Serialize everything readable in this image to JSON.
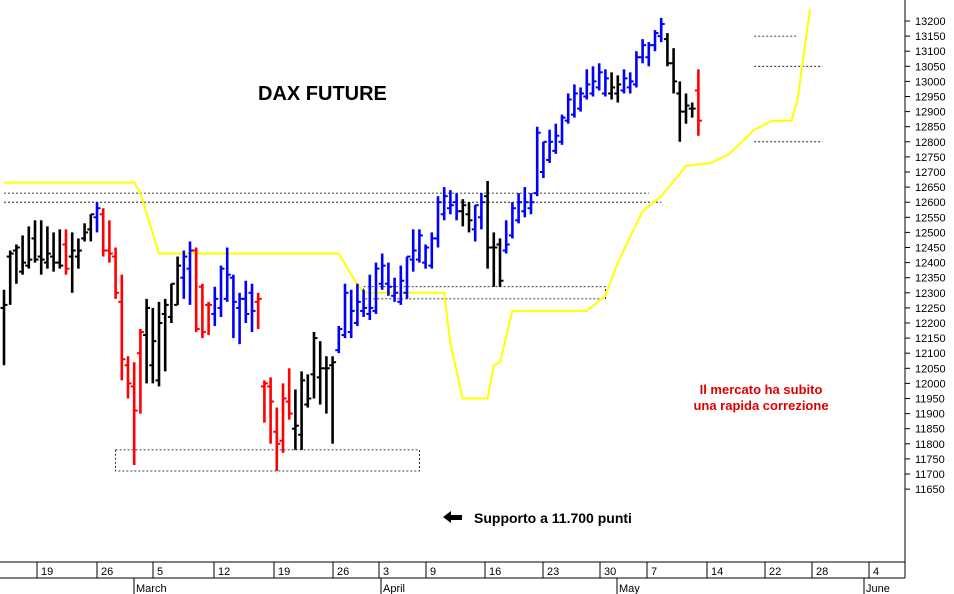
{
  "chart_data": {
    "type": "ohlc",
    "title": "DAX FUTURE",
    "ylim": [
      11620,
      13260
    ],
    "y_ticks": [
      11650,
      11700,
      11750,
      11800,
      11850,
      11900,
      11950,
      12000,
      12050,
      12100,
      12150,
      12200,
      12250,
      12300,
      12350,
      12400,
      12450,
      12500,
      12550,
      12600,
      12650,
      12700,
      12750,
      12800,
      12850,
      12900,
      12950,
      13000,
      13050,
      13100,
      13150,
      13200
    ],
    "x_ticks": [
      "19",
      "26",
      "5",
      "12",
      "19",
      "26",
      "3",
      "9",
      "16",
      "23",
      "30",
      "7",
      "14",
      "22",
      "28",
      "4"
    ],
    "months": [
      "March",
      "April",
      "May",
      "June"
    ],
    "bar_colors": {
      "up": "#0000ff",
      "down": "#ff0000",
      "neutral": "#000000"
    },
    "trailing_line_color": "#ffff00",
    "bars": [
      {
        "h": 12310,
        "l": 12060,
        "o": 12250,
        "c": 12260,
        "color": "k"
      },
      {
        "h": 12440,
        "l": 12260,
        "o": 12420,
        "c": 12430,
        "color": "k"
      },
      {
        "h": 12460,
        "l": 12330,
        "o": 12440,
        "c": 12450,
        "color": "k"
      },
      {
        "h": 12490,
        "l": 12360,
        "o": 12370,
        "c": 12400,
        "color": "k"
      },
      {
        "h": 12520,
        "l": 12380,
        "o": 12390,
        "c": 12410,
        "color": "k"
      },
      {
        "h": 12540,
        "l": 12400,
        "o": 12480,
        "c": 12410,
        "color": "k"
      },
      {
        "h": 12540,
        "l": 12360,
        "o": 12420,
        "c": 12410,
        "color": "k"
      },
      {
        "h": 12520,
        "l": 12380,
        "o": 12400,
        "c": 12430,
        "color": "k"
      },
      {
        "h": 12500,
        "l": 12370,
        "o": 12420,
        "c": 12400,
        "color": "k"
      },
      {
        "h": 12510,
        "l": 12380,
        "o": 12400,
        "c": 12390,
        "color": "k"
      },
      {
        "h": 12510,
        "l": 12360,
        "o": 12460,
        "c": 12380,
        "color": "r"
      },
      {
        "h": 12500,
        "l": 12300,
        "o": 12420,
        "c": 12440,
        "color": "k"
      },
      {
        "h": 12480,
        "l": 12380,
        "o": 12420,
        "c": 12440,
        "color": "k"
      },
      {
        "h": 12530,
        "l": 12470,
        "o": 12480,
        "c": 12500,
        "color": "k"
      },
      {
        "h": 12560,
        "l": 12470,
        "o": 12510,
        "c": 12560,
        "color": "k"
      },
      {
        "h": 12600,
        "l": 12500,
        "o": 12550,
        "c": 12580,
        "color": "b"
      },
      {
        "h": 12580,
        "l": 12420,
        "o": 12560,
        "c": 12440,
        "color": "r"
      },
      {
        "h": 12540,
        "l": 12400,
        "o": 12440,
        "c": 12430,
        "color": "r"
      },
      {
        "h": 12450,
        "l": 12280,
        "o": 12420,
        "c": 12300,
        "color": "r"
      },
      {
        "h": 12360,
        "l": 12010,
        "o": 12270,
        "c": 12080,
        "color": "r"
      },
      {
        "h": 12090,
        "l": 11950,
        "o": 12060,
        "c": 12000,
        "color": "r"
      },
      {
        "h": 12070,
        "l": 11730,
        "o": 11990,
        "c": 11910,
        "color": "r"
      },
      {
        "h": 12180,
        "l": 11900,
        "o": 12100,
        "c": 12170,
        "color": "r"
      },
      {
        "h": 12280,
        "l": 12000,
        "o": 12160,
        "c": 12250,
        "color": "k"
      },
      {
        "h": 12250,
        "l": 12000,
        "o": 12060,
        "c": 12140,
        "color": "k"
      },
      {
        "h": 12270,
        "l": 11990,
        "o": 12010,
        "c": 12200,
        "color": "k"
      },
      {
        "h": 12280,
        "l": 12040,
        "o": 12230,
        "c": 12260,
        "color": "k"
      },
      {
        "h": 12330,
        "l": 12200,
        "o": 12220,
        "c": 12330,
        "color": "k"
      },
      {
        "h": 12420,
        "l": 12260,
        "o": 12260,
        "c": 12390,
        "color": "k"
      },
      {
        "h": 12440,
        "l": 12280,
        "o": 12350,
        "c": 12420,
        "color": "b"
      },
      {
        "h": 12470,
        "l": 12260,
        "o": 12380,
        "c": 12440,
        "color": "b"
      },
      {
        "h": 12450,
        "l": 12170,
        "o": 12440,
        "c": 12180,
        "color": "r"
      },
      {
        "h": 12330,
        "l": 12150,
        "o": 12320,
        "c": 12170,
        "color": "r"
      },
      {
        "h": 12270,
        "l": 12160,
        "o": 12260,
        "c": 12260,
        "color": "r"
      },
      {
        "h": 12320,
        "l": 12190,
        "o": 12230,
        "c": 12280,
        "color": "b"
      },
      {
        "h": 12390,
        "l": 12220,
        "o": 12250,
        "c": 12380,
        "color": "b"
      },
      {
        "h": 12450,
        "l": 12270,
        "o": 12280,
        "c": 12360,
        "color": "b"
      },
      {
        "h": 12360,
        "l": 12150,
        "o": 12350,
        "c": 12270,
        "color": "b"
      },
      {
        "h": 12300,
        "l": 12130,
        "o": 12250,
        "c": 12280,
        "color": "b"
      },
      {
        "h": 12340,
        "l": 12200,
        "o": 12280,
        "c": 12230,
        "color": "b"
      },
      {
        "h": 12330,
        "l": 12170,
        "o": 12300,
        "c": 12240,
        "color": "b"
      },
      {
        "h": 12300,
        "l": 12180,
        "o": 12270,
        "c": 12280,
        "color": "r"
      },
      {
        "h": 12010,
        "l": 11870,
        "o": 11990,
        "c": 12000,
        "color": "r"
      },
      {
        "h": 12020,
        "l": 11800,
        "o": 11990,
        "c": 11940,
        "color": "r"
      },
      {
        "h": 11920,
        "l": 11710,
        "o": 11840,
        "c": 11800,
        "color": "r"
      },
      {
        "h": 12000,
        "l": 11770,
        "o": 11810,
        "c": 11950,
        "color": "r"
      },
      {
        "h": 12050,
        "l": 11880,
        "o": 11940,
        "c": 11900,
        "color": "r"
      },
      {
        "h": 11980,
        "l": 11780,
        "o": 11850,
        "c": 11860,
        "color": "k"
      },
      {
        "h": 12040,
        "l": 11780,
        "o": 11830,
        "c": 12010,
        "color": "k"
      },
      {
        "h": 12030,
        "l": 11920,
        "o": 11930,
        "c": 11950,
        "color": "k"
      },
      {
        "h": 12170,
        "l": 11950,
        "o": 12030,
        "c": 12150,
        "color": "k"
      },
      {
        "h": 12140,
        "l": 11930,
        "o": 12020,
        "c": 12050,
        "color": "k"
      },
      {
        "h": 12090,
        "l": 11900,
        "o": 12050,
        "c": 12050,
        "color": "k"
      },
      {
        "h": 12090,
        "l": 11800,
        "o": 12060,
        "c": 12070,
        "color": "k"
      },
      {
        "h": 12190,
        "l": 12100,
        "o": 12110,
        "c": 12180,
        "color": "b"
      },
      {
        "h": 12330,
        "l": 12150,
        "o": 12160,
        "c": 12300,
        "color": "b"
      },
      {
        "h": 12310,
        "l": 12150,
        "o": 12170,
        "c": 12240,
        "color": "b"
      },
      {
        "h": 12330,
        "l": 12190,
        "o": 12200,
        "c": 12270,
        "color": "b"
      },
      {
        "h": 12310,
        "l": 12220,
        "o": 12240,
        "c": 12250,
        "color": "b"
      },
      {
        "h": 12360,
        "l": 12210,
        "o": 12230,
        "c": 12250,
        "color": "b"
      },
      {
        "h": 12400,
        "l": 12230,
        "o": 12240,
        "c": 12380,
        "color": "b"
      },
      {
        "h": 12430,
        "l": 12310,
        "o": 12330,
        "c": 12390,
        "color": "b"
      },
      {
        "h": 12400,
        "l": 12290,
        "o": 12330,
        "c": 12320,
        "color": "b"
      },
      {
        "h": 12350,
        "l": 12270,
        "o": 12290,
        "c": 12300,
        "color": "b"
      },
      {
        "h": 12390,
        "l": 12260,
        "o": 12270,
        "c": 12340,
        "color": "b"
      },
      {
        "h": 12420,
        "l": 12280,
        "o": 12300,
        "c": 12420,
        "color": "b"
      },
      {
        "h": 12510,
        "l": 12370,
        "o": 12410,
        "c": 12440,
        "color": "b"
      },
      {
        "h": 12510,
        "l": 12400,
        "o": 12410,
        "c": 12490,
        "color": "b"
      },
      {
        "h": 12460,
        "l": 12380,
        "o": 12400,
        "c": 12450,
        "color": "b"
      },
      {
        "h": 12500,
        "l": 12380,
        "o": 12390,
        "c": 12480,
        "color": "b"
      },
      {
        "h": 12620,
        "l": 12450,
        "o": 12480,
        "c": 12600,
        "color": "b"
      },
      {
        "h": 12650,
        "l": 12540,
        "o": 12560,
        "c": 12620,
        "color": "b"
      },
      {
        "h": 12640,
        "l": 12560,
        "o": 12580,
        "c": 12590,
        "color": "b"
      },
      {
        "h": 12630,
        "l": 12540,
        "o": 12600,
        "c": 12570,
        "color": "b"
      },
      {
        "h": 12610,
        "l": 12520,
        "o": 12570,
        "c": 12590,
        "color": "k"
      },
      {
        "h": 12600,
        "l": 12500,
        "o": 12560,
        "c": 12540,
        "color": "k"
      },
      {
        "h": 12590,
        "l": 12470,
        "o": 12510,
        "c": 12590,
        "color": "b"
      },
      {
        "h": 12630,
        "l": 12510,
        "o": 12550,
        "c": 12600,
        "color": "b"
      },
      {
        "h": 12670,
        "l": 12380,
        "o": 12620,
        "c": 12450,
        "color": "k"
      },
      {
        "h": 12500,
        "l": 12320,
        "o": 12450,
        "c": 12450,
        "color": "k"
      },
      {
        "h": 12480,
        "l": 12320,
        "o": 12460,
        "c": 12340,
        "color": "k"
      },
      {
        "h": 12540,
        "l": 12430,
        "o": 12440,
        "c": 12460,
        "color": "b"
      },
      {
        "h": 12600,
        "l": 12480,
        "o": 12490,
        "c": 12580,
        "color": "b"
      },
      {
        "h": 12630,
        "l": 12530,
        "o": 12540,
        "c": 12600,
        "color": "b"
      },
      {
        "h": 12650,
        "l": 12550,
        "o": 12570,
        "c": 12600,
        "color": "b"
      },
      {
        "h": 12630,
        "l": 12560,
        "o": 12580,
        "c": 12600,
        "color": "b"
      },
      {
        "h": 12850,
        "l": 12620,
        "o": 12630,
        "c": 12830,
        "color": "b"
      },
      {
        "h": 12800,
        "l": 12680,
        "o": 12700,
        "c": 12800,
        "color": "b"
      },
      {
        "h": 12840,
        "l": 12730,
        "o": 12740,
        "c": 12800,
        "color": "b"
      },
      {
        "h": 12860,
        "l": 12760,
        "o": 12770,
        "c": 12820,
        "color": "b"
      },
      {
        "h": 12890,
        "l": 12790,
        "o": 12800,
        "c": 12880,
        "color": "b"
      },
      {
        "h": 12960,
        "l": 12860,
        "o": 12870,
        "c": 12940,
        "color": "b"
      },
      {
        "h": 12990,
        "l": 12880,
        "o": 12890,
        "c": 12960,
        "color": "b"
      },
      {
        "h": 12980,
        "l": 12900,
        "o": 12910,
        "c": 12960,
        "color": "b"
      },
      {
        "h": 13040,
        "l": 12940,
        "o": 12950,
        "c": 12990,
        "color": "b"
      },
      {
        "h": 13050,
        "l": 12950,
        "o": 12960,
        "c": 13000,
        "color": "b"
      },
      {
        "h": 13060,
        "l": 12970,
        "o": 12980,
        "c": 13030,
        "color": "b"
      },
      {
        "h": 13040,
        "l": 12950,
        "o": 12960,
        "c": 13010,
        "color": "b"
      },
      {
        "h": 13030,
        "l": 12940,
        "o": 12960,
        "c": 12980,
        "color": "k"
      },
      {
        "h": 13020,
        "l": 12930,
        "o": 12960,
        "c": 12990,
        "color": "k"
      },
      {
        "h": 13040,
        "l": 12960,
        "o": 12970,
        "c": 13010,
        "color": "b"
      },
      {
        "h": 13030,
        "l": 12960,
        "o": 12980,
        "c": 13000,
        "color": "b"
      },
      {
        "h": 13100,
        "l": 12980,
        "o": 12990,
        "c": 13080,
        "color": "b"
      },
      {
        "h": 13140,
        "l": 13060,
        "o": 13080,
        "c": 13120,
        "color": "b"
      },
      {
        "h": 13130,
        "l": 13050,
        "o": 13080,
        "c": 13120,
        "color": "b"
      },
      {
        "h": 13170,
        "l": 13100,
        "o": 13120,
        "c": 13160,
        "color": "b"
      },
      {
        "h": 13210,
        "l": 13130,
        "o": 13150,
        "c": 13190,
        "color": "b"
      },
      {
        "h": 13160,
        "l": 13050,
        "o": 13140,
        "c": 13060,
        "color": "k"
      },
      {
        "h": 13110,
        "l": 12960,
        "o": 13060,
        "c": 13000,
        "color": "k"
      },
      {
        "h": 13000,
        "l": 12800,
        "o": 12960,
        "c": 12900,
        "color": "k"
      },
      {
        "h": 12960,
        "l": 12860,
        "o": 12900,
        "c": 12920,
        "color": "k"
      },
      {
        "h": 12930,
        "l": 12880,
        "o": 12910,
        "c": 12910,
        "color": "k"
      },
      {
        "h": 13040,
        "l": 12820,
        "o": 12970,
        "c": 12870,
        "color": "r"
      }
    ],
    "trailing_line": [
      {
        "i": 0,
        "y": 12665
      },
      {
        "i": 21,
        "y": 12665
      },
      {
        "i": 22,
        "y": 12630
      },
      {
        "i": 25,
        "y": 12430
      },
      {
        "i": 54,
        "y": 12430
      },
      {
        "i": 56,
        "y": 12360
      },
      {
        "i": 58,
        "y": 12300
      },
      {
        "i": 71,
        "y": 12300
      },
      {
        "i": 72,
        "y": 12130
      },
      {
        "i": 74,
        "y": 11950
      },
      {
        "i": 78,
        "y": 11950
      },
      {
        "i": 79,
        "y": 12060
      },
      {
        "i": 80,
        "y": 12070
      },
      {
        "i": 82,
        "y": 12240
      },
      {
        "i": 94,
        "y": 12240
      },
      {
        "i": 97,
        "y": 12290
      },
      {
        "i": 99,
        "y": 12400
      },
      {
        "i": 103,
        "y": 12570
      },
      {
        "i": 106,
        "y": 12620
      },
      {
        "i": 110,
        "y": 12720
      },
      {
        "i": 114,
        "y": 12730
      },
      {
        "i": 117,
        "y": 12760
      },
      {
        "i": 121,
        "y": 12840
      },
      {
        "i": 124,
        "y": 12870
      },
      {
        "i": 127,
        "y": 12870
      },
      {
        "i": 128,
        "y": 12940
      },
      {
        "i": 130,
        "y": 13240
      }
    ],
    "levels": [
      {
        "y": 12630,
        "from": 0,
        "to": 104
      },
      {
        "y": 12600,
        "from": 0,
        "to": 106
      },
      {
        "y": 13150,
        "from": 121,
        "to": 128
      },
      {
        "y": 13050,
        "from": 121,
        "to": 132
      },
      {
        "y": 12800,
        "from": 121,
        "to": 132
      }
    ],
    "boxes": [
      {
        "y1": 12320,
        "y2": 12280,
        "from": 58,
        "to": 97
      },
      {
        "y1": 11780,
        "y2": 11710,
        "from": 18,
        "to": 67
      }
    ],
    "annotations": {
      "support": "Supporto a 11.700 punti",
      "note_line1": "Il mercato ha subito",
      "note_line2": "una rapida correzione"
    }
  }
}
